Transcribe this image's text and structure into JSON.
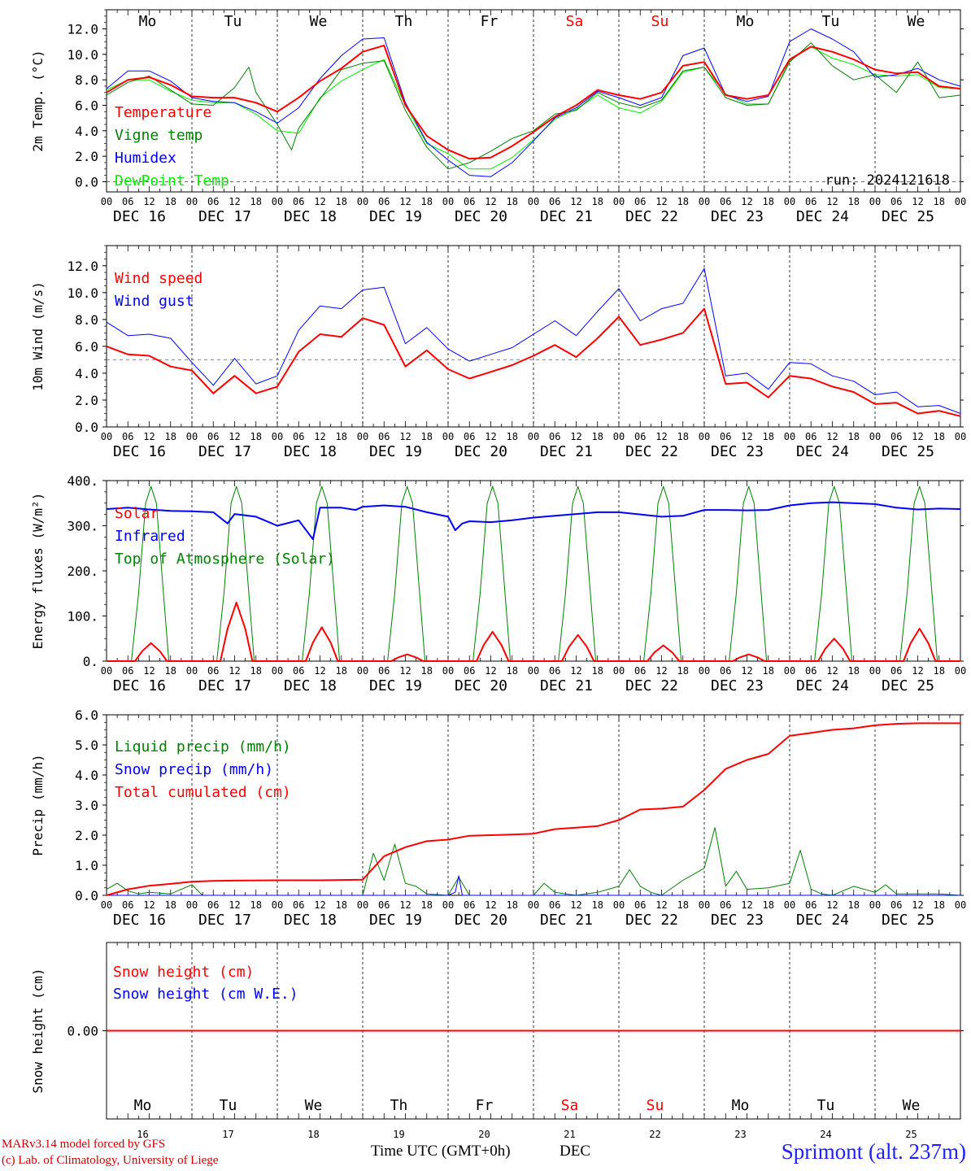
{
  "days": {
    "weekdays": [
      "Mo",
      "Tu",
      "We",
      "Th",
      "Fr",
      "Sa",
      "Su",
      "Mo",
      "Tu",
      "We"
    ],
    "weekend_flags": [
      false,
      false,
      false,
      false,
      false,
      true,
      true,
      false,
      false,
      false
    ],
    "date_labels": [
      "DEC 16",
      "DEC 17",
      "DEC 18",
      "DEC 19",
      "DEC 20",
      "DEC 21",
      "DEC 22",
      "DEC 23",
      "DEC 24",
      "DEC 25"
    ],
    "day_numbers": [
      "16",
      "17",
      "18",
      "19",
      "20",
      "21",
      "22",
      "23",
      "24",
      "25"
    ],
    "hour_ticks": [
      "00",
      "06",
      "12",
      "18"
    ],
    "last_tick": "00"
  },
  "colors": {
    "red": "#ff0000",
    "green": "#008000",
    "blue": "#0000ff",
    "lightgreen": "#00ee00",
    "darkred": "#cc0000",
    "weekend": "#ff0000"
  },
  "chart_data": [
    {
      "type": "line",
      "ylabel": "2m Temp. (°C)",
      "ylim": [
        -0.8,
        13.5
      ],
      "yticks": [
        "0.0",
        "2.0",
        "4.0",
        "6.0",
        "8.0",
        "10.0",
        "12.0"
      ],
      "annotation": "run: 2024121618",
      "x_unit": "hours since DEC 16 00 UTC",
      "series": [
        {
          "name": "Temperature",
          "color": "red",
          "width": 2,
          "x": [
            0,
            6,
            12,
            18,
            24,
            30,
            36,
            42,
            48,
            54,
            60,
            66,
            72,
            78,
            84,
            90,
            96,
            102,
            108,
            114,
            120,
            126,
            132,
            138,
            144,
            150,
            156,
            162,
            168,
            174,
            180,
            186,
            192,
            198,
            204,
            210,
            216,
            222,
            228,
            234,
            240
          ],
          "y": [
            7.0,
            8.0,
            8.2,
            7.6,
            6.7,
            6.6,
            6.6,
            6.2,
            5.5,
            6.6,
            7.9,
            8.9,
            10.2,
            10.7,
            6.0,
            3.6,
            2.5,
            1.8,
            1.9,
            2.8,
            3.9,
            5.1,
            6.0,
            7.2,
            6.8,
            6.5,
            7.0,
            9.1,
            9.4,
            6.8,
            6.5,
            6.8,
            9.6,
            10.6,
            10.2,
            9.6,
            8.8,
            8.5,
            8.6,
            7.5,
            7.3
          ]
        },
        {
          "name": "Vigne temp",
          "color": "green",
          "width": 1,
          "x": [
            0,
            6,
            12,
            18,
            24,
            30,
            36,
            40,
            42,
            48,
            52,
            54,
            60,
            66,
            72,
            78,
            84,
            90,
            96,
            102,
            108,
            114,
            120,
            126,
            132,
            138,
            144,
            150,
            156,
            162,
            168,
            174,
            180,
            186,
            192,
            198,
            204,
            210,
            216,
            222,
            228,
            234,
            240
          ],
          "y": [
            6.8,
            7.8,
            8.3,
            7.2,
            6.1,
            6.0,
            7.4,
            9.0,
            7.0,
            4.5,
            2.5,
            4.2,
            6.5,
            8.8,
            9.3,
            9.5,
            5.6,
            2.7,
            1.0,
            1.5,
            2.4,
            3.4,
            4.0,
            5.3,
            5.6,
            7.0,
            6.2,
            5.8,
            6.4,
            8.7,
            9.0,
            6.6,
            6.0,
            6.1,
            9.4,
            10.9,
            9.1,
            8.0,
            8.4,
            7.0,
            9.4,
            6.6,
            6.8
          ]
        },
        {
          "name": "Humidex",
          "color": "blue",
          "width": 1,
          "x": [
            0,
            6,
            12,
            18,
            24,
            30,
            36,
            42,
            48,
            54,
            60,
            66,
            72,
            78,
            84,
            90,
            96,
            102,
            108,
            114,
            120,
            126,
            132,
            138,
            144,
            150,
            156,
            162,
            168,
            174,
            180,
            186,
            192,
            198,
            204,
            210,
            216,
            222,
            228,
            234,
            240
          ],
          "y": [
            7.3,
            8.7,
            8.7,
            7.9,
            6.6,
            6.3,
            6.2,
            5.5,
            4.6,
            5.8,
            8.1,
            9.9,
            11.2,
            11.3,
            6.2,
            3.1,
            1.7,
            0.5,
            0.4,
            1.5,
            3.2,
            5.0,
            5.8,
            7.1,
            6.6,
            6.0,
            6.6,
            9.9,
            10.5,
            6.8,
            6.3,
            6.7,
            11.0,
            12.0,
            11.2,
            10.2,
            8.2,
            8.4,
            8.9,
            8.0,
            7.5
          ]
        },
        {
          "name": "DewPoint Temp",
          "color": "lightgreen",
          "width": 1,
          "x": [
            0,
            6,
            12,
            18,
            24,
            30,
            36,
            42,
            48,
            54,
            60,
            66,
            72,
            78,
            84,
            90,
            96,
            102,
            108,
            114,
            120,
            126,
            132,
            138,
            144,
            150,
            156,
            162,
            168,
            174,
            180,
            186,
            192,
            198,
            204,
            210,
            216,
            222,
            228,
            234,
            240
          ],
          "y": [
            7.2,
            8.0,
            8.0,
            7.1,
            6.4,
            6.2,
            6.2,
            5.3,
            4.0,
            3.8,
            6.6,
            7.9,
            8.8,
            9.6,
            6.0,
            3.0,
            2.2,
            1.0,
            1.0,
            1.9,
            3.3,
            4.9,
            5.7,
            6.8,
            5.8,
            5.4,
            6.3,
            8.6,
            9.0,
            6.9,
            6.1,
            6.1,
            9.5,
            10.6,
            9.7,
            9.2,
            8.4,
            8.3,
            8.4,
            7.4,
            7.3
          ]
        }
      ]
    },
    {
      "type": "line",
      "ylabel": "10m Wind (m/s)",
      "ylim": [
        0,
        13.5
      ],
      "yticks": [
        "0.0",
        "2.0",
        "4.0",
        "6.0",
        "8.0",
        "10.0",
        "12.0"
      ],
      "threshold": 5,
      "x_unit": "hours since DEC 16 00 UTC",
      "series": [
        {
          "name": "Wind speed",
          "color": "red",
          "width": 2,
          "x": [
            0,
            6,
            12,
            18,
            24,
            30,
            36,
            42,
            48,
            54,
            60,
            66,
            72,
            78,
            84,
            90,
            96,
            102,
            108,
            114,
            120,
            126,
            132,
            138,
            144,
            150,
            156,
            162,
            168,
            174,
            180,
            186,
            192,
            198,
            204,
            210,
            216,
            222,
            228,
            234,
            240
          ],
          "y": [
            6.0,
            5.4,
            5.3,
            4.5,
            4.2,
            2.5,
            3.8,
            2.5,
            3.0,
            5.6,
            6.9,
            6.7,
            8.1,
            7.6,
            4.5,
            5.7,
            4.3,
            3.6,
            4.1,
            4.6,
            5.3,
            6.1,
            5.2,
            6.6,
            8.2,
            6.1,
            6.5,
            7.0,
            8.8,
            3.2,
            3.3,
            2.2,
            3.8,
            3.6,
            3.0,
            2.6,
            1.7,
            1.8,
            1.0,
            1.2,
            0.8
          ]
        },
        {
          "name": "Wind gust",
          "color": "blue",
          "width": 1,
          "x": [
            0,
            6,
            12,
            18,
            24,
            30,
            36,
            42,
            48,
            54,
            60,
            66,
            72,
            78,
            84,
            90,
            96,
            102,
            108,
            114,
            120,
            126,
            132,
            138,
            144,
            150,
            156,
            162,
            168,
            174,
            180,
            186,
            192,
            198,
            204,
            210,
            216,
            222,
            228,
            234,
            240
          ],
          "y": [
            7.8,
            6.8,
            6.9,
            6.6,
            4.8,
            3.1,
            5.1,
            3.2,
            3.8,
            7.2,
            9.0,
            8.8,
            10.2,
            10.4,
            6.2,
            7.4,
            5.8,
            4.9,
            5.4,
            5.9,
            6.9,
            7.9,
            6.8,
            8.6,
            10.3,
            7.9,
            8.8,
            9.2,
            11.8,
            3.8,
            4.0,
            2.8,
            4.8,
            4.7,
            3.8,
            3.4,
            2.4,
            2.6,
            1.5,
            1.6,
            1.0
          ]
        }
      ]
    },
    {
      "type": "line",
      "ylabel": "Energy fluxes (W/m²)",
      "ylim": [
        0,
        400
      ],
      "yticks": [
        "0.",
        "100.",
        "200.",
        "300.",
        "400."
      ],
      "x_unit": "hours since DEC 16 00 UTC",
      "series": [
        {
          "name": "Solar",
          "color": "red",
          "width": 2,
          "day_peaks": [
            40,
            130,
            75,
            15,
            65,
            58,
            35,
            15,
            50,
            72
          ]
        },
        {
          "name": "Infrared",
          "color": "blue",
          "width": 2,
          "x": [
            0,
            6,
            12,
            18,
            24,
            30,
            34,
            36,
            42,
            48,
            54,
            58,
            60,
            66,
            70,
            72,
            78,
            84,
            90,
            96,
            98,
            100,
            102,
            108,
            114,
            120,
            126,
            132,
            138,
            144,
            150,
            156,
            162,
            168,
            174,
            180,
            186,
            192,
            198,
            204,
            210,
            216,
            222,
            228,
            234,
            240
          ],
          "y": [
            337,
            340,
            336,
            333,
            332,
            330,
            305,
            326,
            320,
            300,
            312,
            270,
            340,
            340,
            335,
            342,
            345,
            342,
            330,
            320,
            290,
            305,
            310,
            308,
            312,
            318,
            322,
            326,
            330,
            330,
            325,
            320,
            322,
            335,
            335,
            334,
            335,
            345,
            350,
            352,
            350,
            348,
            340,
            336,
            338,
            337
          ]
        },
        {
          "name": "Top of Atmosphere (Solar)",
          "color": "green",
          "width": 1,
          "day_peak": 387
        }
      ]
    },
    {
      "type": "line",
      "ylabel": "Precip (mm/h)",
      "ylim": [
        0,
        6.0
      ],
      "yticks": [
        "0.0",
        "1.0",
        "2.0",
        "3.0",
        "4.0",
        "5.0",
        "6.0"
      ],
      "x_unit": "hours since DEC 16 00 UTC",
      "series": [
        {
          "name": "Liquid precip (mm/h)",
          "color": "green",
          "width": 1,
          "x": [
            0,
            3,
            6,
            9,
            12,
            18,
            24,
            27,
            30,
            60,
            72,
            75,
            78,
            81,
            84,
            87,
            90,
            96,
            99,
            102,
            114,
            120,
            123,
            126,
            129,
            132,
            138,
            144,
            147,
            150,
            153,
            156,
            162,
            168,
            171,
            174,
            177,
            180,
            186,
            192,
            195,
            198,
            201,
            204,
            210,
            216,
            219,
            222,
            228,
            234,
            240
          ],
          "y": [
            0.2,
            0.4,
            0.15,
            0.05,
            0.1,
            0.05,
            0.35,
            0.0,
            0.0,
            0.0,
            0.0,
            1.4,
            0.5,
            1.7,
            0.4,
            0.3,
            0.05,
            0.0,
            0.6,
            0.0,
            0.0,
            0.0,
            0.4,
            0.1,
            0.05,
            0.0,
            0.1,
            0.3,
            0.85,
            0.3,
            0.1,
            0.0,
            0.5,
            0.9,
            2.25,
            0.3,
            0.8,
            0.2,
            0.25,
            0.4,
            1.5,
            0.2,
            0.05,
            0.0,
            0.3,
            0.1,
            0.35,
            0.05,
            0.05,
            0.05,
            0.0
          ]
        },
        {
          "name": "Snow precip (mm/h)",
          "color": "blue",
          "width": 1,
          "x": [
            0,
            96,
            98,
            99,
            100,
            240
          ],
          "y": [
            0,
            0,
            0.1,
            0.65,
            0.0,
            0
          ]
        },
        {
          "name": "Total cumulated (cm)",
          "color": "red",
          "width": 2,
          "x": [
            0,
            6,
            12,
            18,
            24,
            30,
            36,
            48,
            60,
            72,
            78,
            84,
            90,
            96,
            102,
            108,
            114,
            120,
            126,
            132,
            138,
            144,
            150,
            156,
            162,
            168,
            174,
            180,
            186,
            192,
            198,
            204,
            210,
            216,
            222,
            228,
            234,
            240
          ],
          "y": [
            0.0,
            0.2,
            0.32,
            0.38,
            0.45,
            0.48,
            0.49,
            0.5,
            0.5,
            0.52,
            1.3,
            1.6,
            1.8,
            1.85,
            1.98,
            2.0,
            2.02,
            2.05,
            2.2,
            2.25,
            2.3,
            2.5,
            2.85,
            2.88,
            2.95,
            3.5,
            4.2,
            4.5,
            4.7,
            5.3,
            5.4,
            5.5,
            5.55,
            5.65,
            5.7,
            5.72,
            5.72,
            5.72
          ]
        }
      ]
    },
    {
      "type": "line",
      "ylabel": "Snow height (cm)",
      "ylim": [
        -1,
        1
      ],
      "yticks": [
        "0.00"
      ],
      "series": [
        {
          "name": "Snow height (cm)",
          "color": "red",
          "width": 2,
          "x": [
            0,
            240
          ],
          "y": [
            0,
            0
          ]
        },
        {
          "name": "Snow height (cm W.E.)",
          "color": "blue",
          "width": 1,
          "x": [
            0,
            240
          ],
          "y": [
            0,
            0
          ]
        }
      ]
    }
  ],
  "footer": {
    "model": "MARv3.14 model forced by GFS",
    "lab": "(c) Lab. of Climatology, University of Liege",
    "time_label": "Time UTC (GMT+0h)",
    "month": "DEC",
    "station": "Sprimont (alt. 237m)"
  }
}
